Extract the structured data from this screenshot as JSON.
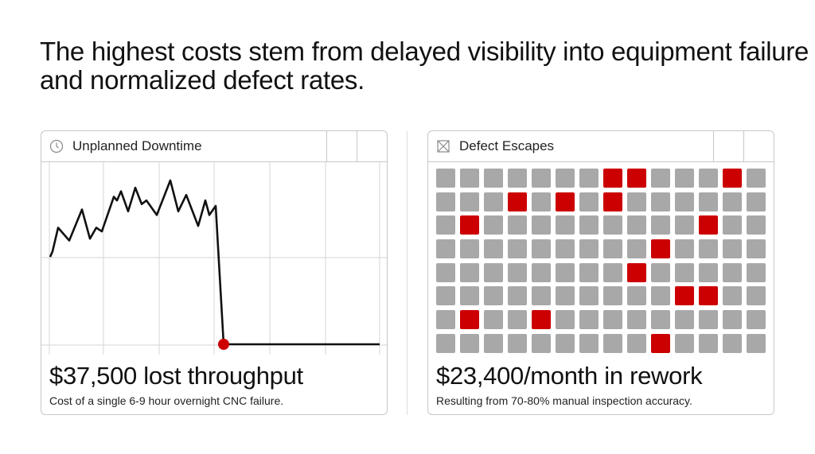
{
  "slide": {
    "title": "The highest costs stem from delayed visibility into equipment failure and normalized defect rates."
  },
  "downtime": {
    "icon": "clock-icon",
    "label": "Unplanned Downtime",
    "headline": "$37,500 lost throughput",
    "caption": "Cost of a single 6-9 hour overnight CNC failure.",
    "failure_color": "#cc0000"
  },
  "defects": {
    "icon": "x-box-icon",
    "label": "Defect Escapes",
    "headline": "$23,400/month in rework",
    "caption": "Resulting from 70-80% manual inspection accuracy.",
    "columns": 14,
    "defect_color": "#cc0000",
    "ok_color": "#a8a8a8",
    "defect_cells": [
      [
        0,
        7
      ],
      [
        0,
        8
      ],
      [
        0,
        12
      ],
      [
        1,
        3
      ],
      [
        1,
        5
      ],
      [
        1,
        7
      ],
      [
        2,
        1
      ],
      [
        2,
        11
      ],
      [
        3,
        9
      ],
      [
        4,
        8
      ],
      [
        5,
        10
      ],
      [
        5,
        11
      ],
      [
        6,
        1
      ],
      [
        6,
        4
      ],
      [
        7,
        9
      ]
    ],
    "rows": 8
  },
  "chart_data": {
    "type": "line",
    "title": "",
    "xlabel": "",
    "ylabel": "",
    "grid": true,
    "series": [
      {
        "values": [
          48,
          51,
          64,
          57,
          74,
          58,
          64,
          62,
          81,
          79,
          84,
          73,
          86,
          77,
          79,
          71,
          90,
          73,
          82,
          65,
          79,
          71,
          76,
          0,
          0
        ]
      }
    ],
    "failure_point_index": 23
  }
}
